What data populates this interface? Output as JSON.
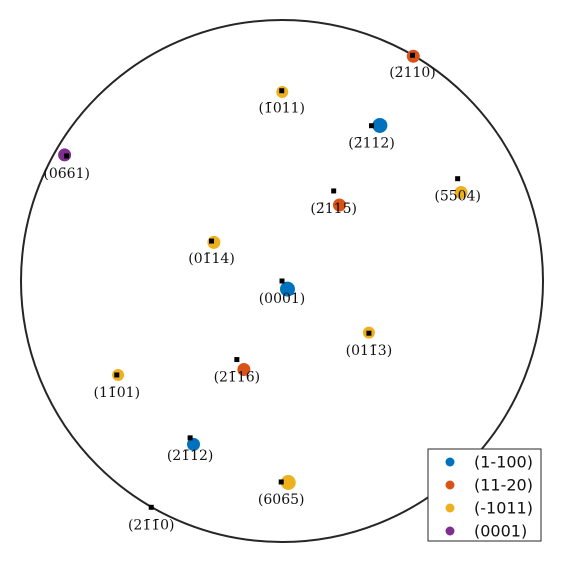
{
  "chart_data": {
    "type": "scatter",
    "title": "",
    "grid": false,
    "legend_position": "bottom-right",
    "projection_radius": 1.0,
    "series": [
      {
        "name": "(1-100)",
        "color": "#0072BD",
        "points": [
          {
            "x": 0.021,
            "y": -0.031,
            "size": "large"
          },
          {
            "x": 0.375,
            "y": 0.596,
            "size": "large"
          },
          {
            "x": -0.339,
            "y": -0.626,
            "size": "medium"
          }
        ]
      },
      {
        "name": "(11-20)",
        "color": "#D95319",
        "points": [
          {
            "x": 0.503,
            "y": 0.861,
            "size": "medium"
          },
          {
            "x": 0.22,
            "y": 0.291,
            "size": "medium"
          },
          {
            "x": -0.146,
            "y": -0.339,
            "size": "medium"
          }
        ]
      },
      {
        "name": "(-1011)",
        "color": "#EDB120",
        "points": [
          {
            "x": 0.001,
            "y": 0.724,
            "size": "small"
          },
          {
            "x": 0.686,
            "y": 0.339,
            "size": "medium"
          },
          {
            "x": -0.261,
            "y": 0.148,
            "size": "medium"
          },
          {
            "x": 0.333,
            "y": -0.198,
            "size": "small"
          },
          {
            "x": -0.628,
            "y": -0.36,
            "size": "small"
          },
          {
            "x": 0.024,
            "y": -0.772,
            "size": "large"
          }
        ]
      },
      {
        "name": "(0001)",
        "color": "#7E2F8E",
        "points": [
          {
            "x": -0.833,
            "y": 0.483,
            "size": "medium"
          }
        ]
      }
    ],
    "reference_markers": [
      {
        "x": 0.0,
        "y": 0.0
      },
      {
        "x": 0.5,
        "y": 0.865
      },
      {
        "x": -0.001,
        "y": 0.729
      },
      {
        "x": 0.343,
        "y": 0.595
      },
      {
        "x": -0.825,
        "y": 0.479
      },
      {
        "x": 0.673,
        "y": 0.392
      },
      {
        "x": 0.198,
        "y": 0.345
      },
      {
        "x": -0.27,
        "y": 0.153
      },
      {
        "x": 0.333,
        "y": -0.2
      },
      {
        "x": -0.173,
        "y": -0.301
      },
      {
        "x": -0.633,
        "y": -0.36
      },
      {
        "x": -0.352,
        "y": -0.601
      },
      {
        "x": -0.003,
        "y": -0.77
      },
      {
        "x": -0.501,
        "y": -0.867
      }
    ],
    "annotations": [
      {
        "text": "(2̄110)",
        "x": 0.5,
        "y": 0.865
      },
      {
        "text": "(1̄011)",
        "x": -0.001,
        "y": 0.729
      },
      {
        "text": "(2̄112)",
        "x": 0.343,
        "y": 0.595
      },
      {
        "text": "(06̄61)",
        "x": -0.825,
        "y": 0.479
      },
      {
        "text": "(5̄504)",
        "x": 0.673,
        "y": 0.392
      },
      {
        "text": "(2̄115)",
        "x": 0.198,
        "y": 0.345
      },
      {
        "text": "(01̄14)",
        "x": -0.27,
        "y": 0.153
      },
      {
        "text": "(0001)",
        "x": 0.0,
        "y": 0.0
      },
      {
        "text": "(011̄3)",
        "x": 0.333,
        "y": -0.2
      },
      {
        "text": "(21̄16)",
        "x": -0.173,
        "y": -0.301
      },
      {
        "text": "(11̄01)",
        "x": -0.633,
        "y": -0.36
      },
      {
        "text": "(21̄12)",
        "x": -0.352,
        "y": -0.601
      },
      {
        "text": "(606̄5)",
        "x": -0.003,
        "y": -0.77
      },
      {
        "text": "(21̄1̄0)",
        "x": -0.501,
        "y": -0.867
      }
    ]
  }
}
